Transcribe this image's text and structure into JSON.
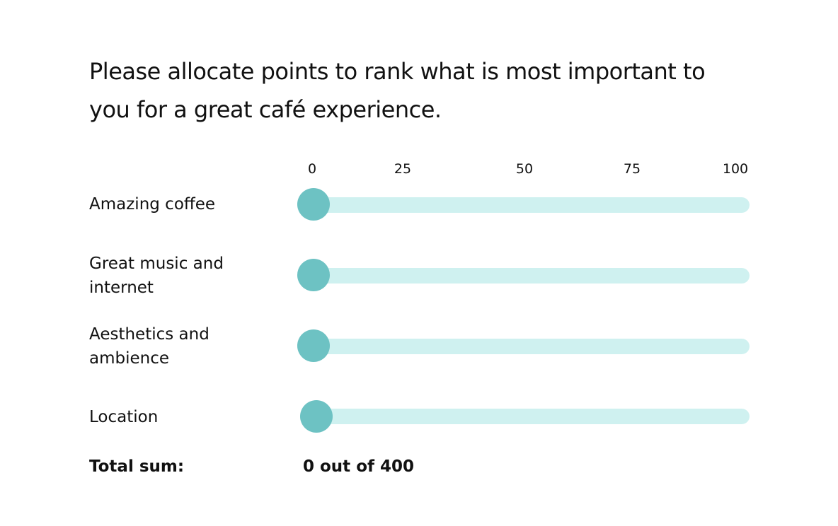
{
  "question": "Please allocate points to rank what is most important to you for a great café experience.",
  "scale": {
    "ticks": [
      "0",
      "25",
      "50",
      "75",
      "100"
    ],
    "min": 0,
    "max": 100
  },
  "rows": [
    {
      "label": "Amazing coffee",
      "value": 0
    },
    {
      "label": "Great music and internet",
      "value": 0
    },
    {
      "label": "Aesthetics and ambience",
      "value": 0
    },
    {
      "label": "Location",
      "value": 0
    }
  ],
  "total": {
    "label": "Total sum:",
    "value": "0 out of 400"
  },
  "colors": {
    "track": "#cff1f0",
    "thumb": "#6dc2c3",
    "text": "#111111"
  }
}
